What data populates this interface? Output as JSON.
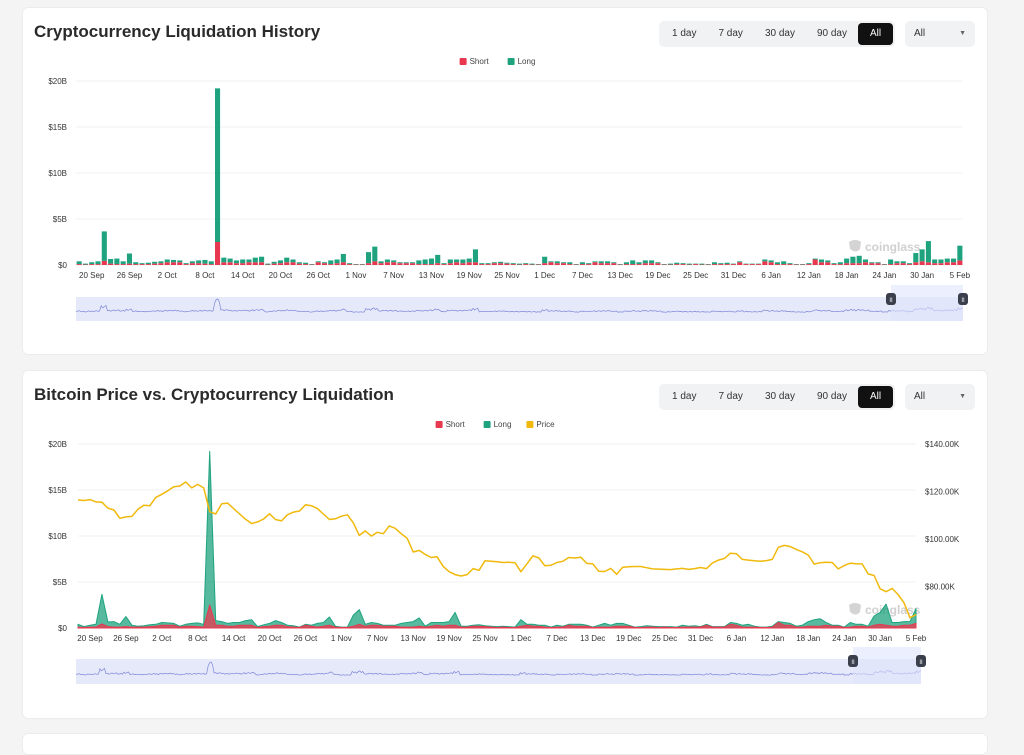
{
  "colors": {
    "short": "#e8384f",
    "long": "#1fa37f",
    "price": "#f0b90b",
    "nav": "#7b86d8",
    "nav_fill": "#e6e9fa",
    "nav_sel": "#dfe4fb"
  },
  "watermark": "coinglass",
  "range_buttons": [
    "1 day",
    "7 day",
    "30 day",
    "90 day",
    "All"
  ],
  "active_range": "All",
  "select_value": "All",
  "chart_data": [
    {
      "type": "bar",
      "title": "Cryptocurrency Liquidation History",
      "stacked": true,
      "legend": [
        "Short",
        "Long"
      ],
      "legend_position": "top-center",
      "ylim": [
        0,
        20
      ],
      "yticks": [
        "$0",
        "$5B",
        "$10B",
        "$15B",
        "$20B"
      ],
      "xticks": [
        "20 Sep",
        "26 Sep",
        "2 Oct",
        "8 Oct",
        "14 Oct",
        "20 Oct",
        "26 Oct",
        "1 Nov",
        "7 Nov",
        "13 Nov",
        "19 Nov",
        "25 Nov",
        "1 Dec",
        "7 Dec",
        "13 Dec",
        "19 Dec",
        "25 Dec",
        "31 Dec",
        "6 Jan",
        "12 Jan",
        "18 Jan",
        "24 Jan",
        "30 Jan",
        "5 Feb"
      ],
      "x_start": "18 Sep",
      "x_step_days": 1,
      "xtick_first_index": 2,
      "xtick_step": 6,
      "unit": "billion USD",
      "series": [
        {
          "name": "Short",
          "values": [
            0.1,
            0.05,
            0.1,
            0.1,
            0.45,
            0.15,
            0.1,
            0.1,
            0.15,
            0.1,
            0.1,
            0.1,
            0.15,
            0.2,
            0.3,
            0.3,
            0.3,
            0.1,
            0.2,
            0.2,
            0.15,
            0.1,
            2.5,
            0.3,
            0.3,
            0.2,
            0.2,
            0.3,
            0.3,
            0.3,
            0.05,
            0.15,
            0.2,
            0.3,
            0.3,
            0.15,
            0.1,
            0.05,
            0.3,
            0.2,
            0.1,
            0.2,
            0.3,
            0.1,
            0.05,
            0.05,
            0.2,
            0.4,
            0.2,
            0.3,
            0.3,
            0.2,
            0.2,
            0.2,
            0.1,
            0.1,
            0.1,
            0.2,
            0.1,
            0.2,
            0.3,
            0.2,
            0.3,
            0.3,
            0.1,
            0.1,
            0.2,
            0.2,
            0.15,
            0.1,
            0.05,
            0.1,
            0.05,
            0.05,
            0.2,
            0.3,
            0.2,
            0.2,
            0.1,
            0.05,
            0.1,
            0.1,
            0.3,
            0.2,
            0.2,
            0.2,
            0.05,
            0.1,
            0.1,
            0.1,
            0.2,
            0.2,
            0.2,
            0.05,
            0.05,
            0.1,
            0.1,
            0.05,
            0.1,
            0.05,
            0.05,
            0.1,
            0.1,
            0.1,
            0.1,
            0.3,
            0.1,
            0.1,
            0.1,
            0.4,
            0.3,
            0.1,
            0.1,
            0.1,
            0.05,
            0.05,
            0.1,
            0.6,
            0.3,
            0.3,
            0.1,
            0.1,
            0.2,
            0.2,
            0.2,
            0.3,
            0.2,
            0.2,
            0.05,
            0.1,
            0.2,
            0.2,
            0.1,
            0.3,
            0.4,
            0.3,
            0.2,
            0.2,
            0.3,
            0.3,
            0.5
          ]
        },
        {
          "name": "Long",
          "values": [
            0.3,
            0.1,
            0.2,
            0.3,
            3.2,
            0.5,
            0.6,
            0.3,
            1.1,
            0.2,
            0.1,
            0.15,
            0.2,
            0.2,
            0.3,
            0.25,
            0.2,
            0.1,
            0.2,
            0.3,
            0.4,
            0.3,
            16.7,
            0.5,
            0.4,
            0.3,
            0.4,
            0.3,
            0.5,
            0.6,
            0.1,
            0.2,
            0.3,
            0.5,
            0.3,
            0.15,
            0.15,
            0.05,
            0.1,
            0.1,
            0.4,
            0.4,
            0.9,
            0.1,
            0.05,
            0.05,
            1.2,
            1.6,
            0.2,
            0.3,
            0.2,
            0.1,
            0.1,
            0.1,
            0.4,
            0.5,
            0.6,
            0.9,
            0.1,
            0.4,
            0.3,
            0.4,
            0.4,
            1.4,
            0.1,
            0.1,
            0.1,
            0.15,
            0.1,
            0.1,
            0.1,
            0.1,
            0.1,
            0.05,
            0.7,
            0.1,
            0.2,
            0.1,
            0.2,
            0.05,
            0.2,
            0.1,
            0.1,
            0.2,
            0.2,
            0.1,
            0.05,
            0.2,
            0.4,
            0.2,
            0.3,
            0.3,
            0.1,
            0.05,
            0.1,
            0.15,
            0.1,
            0.1,
            0.05,
            0.1,
            0.05,
            0.2,
            0.1,
            0.15,
            0.05,
            0.1,
            0.05,
            0.05,
            0.05,
            0.2,
            0.2,
            0.2,
            0.3,
            0.1,
            0.05,
            0.05,
            0.1,
            0.1,
            0.3,
            0.2,
            0.1,
            0.2,
            0.5,
            0.7,
            0.8,
            0.3,
            0.1,
            0.1,
            0.05,
            0.5,
            0.2,
            0.2,
            0.1,
            1.0,
            1.3,
            2.3,
            0.4,
            0.4,
            0.4,
            0.4,
            1.6
          ]
        }
      ]
    },
    {
      "type": "area",
      "title": "Bitcoin Price vs. Cryptocurrency Liquidation",
      "legend": [
        "Short",
        "Long",
        "Price"
      ],
      "legend_position": "top-center",
      "ylim": [
        0,
        20
      ],
      "yticks": [
        "$0",
        "$5B",
        "$10B",
        "$15B",
        "$20B"
      ],
      "y2lim": [
        62.5,
        140
      ],
      "y2ticks": [
        "$80.00K",
        "$100.00K",
        "$120.00K",
        "$140.00K"
      ],
      "y2tick_values": [
        80,
        100,
        120,
        140
      ],
      "xticks": [
        "20 Sep",
        "26 Sep",
        "2 Oct",
        "8 Oct",
        "14 Oct",
        "20 Oct",
        "26 Oct",
        "1 Nov",
        "7 Nov",
        "13 Nov",
        "19 Nov",
        "25 Nov",
        "1 Dec",
        "7 Dec",
        "13 Dec",
        "19 Dec",
        "25 Dec",
        "31 Dec",
        "6 Jan",
        "12 Jan",
        "18 Jan",
        "24 Jan",
        "30 Jan",
        "5 Feb"
      ],
      "price_unit": "thousand USD",
      "price": [
        116.4,
        116.2,
        116.6,
        115.6,
        115.5,
        113,
        112.2,
        108.7,
        109.3,
        109.5,
        112.5,
        114.2,
        114,
        117.5,
        118.8,
        120.3,
        122,
        122.3,
        124,
        121.5,
        123,
        121.5,
        111.5,
        110.5,
        114.8,
        115.1,
        112.8,
        110.5,
        108.3,
        106.5,
        107.2,
        108.4,
        110.6,
        108.2,
        107.6,
        110.2,
        111.3,
        111.8,
        114.4,
        114,
        112.8,
        110.5,
        108.2,
        108.5,
        109.6,
        110.2,
        106.8,
        101.5,
        103.4,
        101.2,
        102.8,
        102.2,
        105.5,
        104.5,
        102.2,
        100.3,
        94.5,
        95.2,
        93.5,
        92.2,
        92.5,
        88.5,
        86.2,
        85,
        84.4,
        85,
        87.5,
        86.8,
        90.8,
        90.6,
        90.4,
        90.1,
        90.2,
        90,
        86.2,
        89.5,
        92.9,
        92,
        88.7,
        88.9,
        90.1,
        90.6,
        92.2,
        92,
        92.3,
        89.7,
        89.5,
        86.4,
        86.3,
        87.6,
        85.1,
        88.1,
        88.3,
        88.4,
        88.4,
        87.9,
        87.4,
        87.3,
        87.2,
        87.1,
        87.4,
        87.6,
        87.2,
        87.5,
        88,
        87.5,
        89.9,
        91.1,
        91.8,
        94,
        93.8,
        91.4,
        91.1,
        90.8,
        90.6,
        90.9,
        91.4,
        96.5,
        97.3,
        96.8,
        95.6,
        94.6,
        93.2,
        89.4,
        90,
        90.2,
        90.1,
        87.4,
        88.8,
        89.8,
        89.6,
        89.5,
        85.3,
        84.6,
        79,
        77.8,
        79.2,
        76.6,
        73.1,
        66.8,
        68.2
      ],
      "liquidation_series": "same as chart 1"
    }
  ]
}
